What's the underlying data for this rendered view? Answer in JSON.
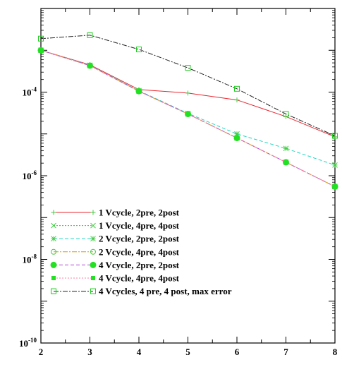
{
  "chart_data": {
    "type": "line",
    "title": "",
    "xlabel": "",
    "ylabel": "",
    "xlim": [
      2,
      8
    ],
    "ylim": [
      1e-10,
      0.01
    ],
    "yscale": "log",
    "grid": false,
    "legend_position": "bottom-left",
    "x_ticks": [
      {
        "value": 2,
        "label": "2"
      },
      {
        "value": 3,
        "label": "3"
      },
      {
        "value": 4,
        "label": "4"
      },
      {
        "value": 5,
        "label": "5"
      },
      {
        "value": 6,
        "label": "6"
      },
      {
        "value": 7,
        "label": "7"
      },
      {
        "value": 8,
        "label": "8"
      }
    ],
    "y_ticks": [
      {
        "exp": -4,
        "base": "10",
        "sup": "-4"
      },
      {
        "exp": -6,
        "base": "10",
        "sup": "-6"
      },
      {
        "exp": -8,
        "base": "10",
        "sup": "-8"
      },
      {
        "exp": -10,
        "base": "10",
        "sup": "-10"
      }
    ],
    "series": [
      {
        "name": "1 Vcycle, 2pre, 2post",
        "color": "#e8262e",
        "dash": "solid",
        "marker": "plus",
        "x": [
          2,
          3,
          4,
          5,
          6,
          7,
          8
        ],
        "y": [
          0.001,
          0.00045,
          0.000115,
          9.5e-05,
          6.5e-05,
          2.6e-05,
          8.5e-06
        ]
      },
      {
        "name": "1 Vcycle, 4pre, 4post",
        "color": "#33cc33",
        "dash": "dotted",
        "marker": "x",
        "x": [
          2,
          3,
          4,
          5,
          6,
          7,
          8
        ],
        "y": [
          0.001,
          0.00043,
          0.000105,
          3e-05,
          8e-06,
          2.1e-06,
          5.5e-07
        ]
      },
      {
        "name": "2 Vcycle, 2pre, 2post",
        "color": "#1fd6c2",
        "dash": "dashed",
        "marker": "star",
        "x": [
          2,
          3,
          4,
          5,
          6,
          7,
          8
        ],
        "y": [
          0.001,
          0.00044,
          0.000108,
          3.1e-05,
          1e-05,
          4.5e-06,
          1.8e-06
        ]
      },
      {
        "name": "2 Vcycle, 4pre, 4post",
        "color": "#d49a12",
        "dash": "dashdot",
        "marker": "circle-open",
        "x": [
          2,
          3,
          4,
          5,
          6,
          7,
          8
        ],
        "y": [
          0.001,
          0.00043,
          0.000105,
          3e-05,
          8e-06,
          2.1e-06,
          5.5e-07
        ]
      },
      {
        "name": "4 Vcycle, 2pre, 2post",
        "color": "#b04ad6",
        "dash": "dashed",
        "marker": "circle-filled",
        "x": [
          2,
          3,
          4,
          5,
          6,
          7,
          8
        ],
        "y": [
          0.001,
          0.00043,
          0.000105,
          3e-05,
          8e-06,
          2.1e-06,
          5.5e-07
        ]
      },
      {
        "name": "4 Vcycle, 4pre, 4post",
        "color": "#ff7fa0",
        "dash": "dotted",
        "marker": "square-filled",
        "x": [
          2,
          3,
          4,
          5,
          6,
          7,
          8
        ],
        "y": [
          0.001,
          0.00043,
          0.000105,
          3e-05,
          8e-06,
          2.1e-06,
          5.5e-07
        ]
      },
      {
        "name": "4 Vcycles, 4 pre, 4 post, max error",
        "color": "#222222",
        "dash": "dashdot",
        "marker": "square-open",
        "x": [
          2,
          3,
          4,
          5,
          6,
          7,
          8
        ],
        "y": [
          0.0019,
          0.0023,
          0.00105,
          0.00038,
          0.00012,
          3e-05,
          9e-06
        ]
      }
    ]
  }
}
